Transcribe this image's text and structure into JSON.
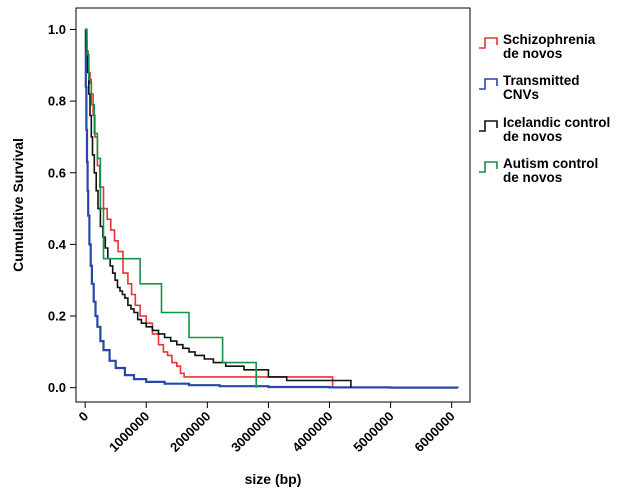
{
  "chart_data": {
    "type": "line",
    "step": true,
    "title": "",
    "xlabel": "size (bp)",
    "ylabel": "Cumulative Survival",
    "xlim": [
      -150000,
      6300000
    ],
    "ylim": [
      -0.04,
      1.06
    ],
    "x_ticks": [
      0,
      1000000,
      2000000,
      3000000,
      4000000,
      5000000,
      6000000
    ],
    "x_tick_labels": [
      "0",
      "1000000",
      "2000000",
      "3000000",
      "4000000",
      "5000000",
      "6000000"
    ],
    "y_ticks": [
      0,
      0.2,
      0.4,
      0.6,
      0.8,
      1.0
    ],
    "y_tick_labels": [
      "0.0",
      "0.2",
      "0.4",
      "0.6",
      "0.8",
      "1.0"
    ],
    "grid": false,
    "legend_position": "outside-right",
    "series": [
      {
        "name": "Schizophrenia de novos",
        "label_lines": [
          "Schizophrenia",
          "de novos"
        ],
        "color": "#e8333a",
        "x": [
          0,
          15000,
          30000,
          45000,
          60000,
          80000,
          100000,
          130000,
          160000,
          200000,
          240000,
          300000,
          360000,
          420000,
          480000,
          540000,
          620000,
          700000,
          760000,
          820000,
          900000,
          1000000,
          1100000,
          1200000,
          1280000,
          1350000,
          1420000,
          1500000,
          1560000,
          1620000,
          1680000,
          4050000
        ],
        "y": [
          1.0,
          0.97,
          0.94,
          0.91,
          0.88,
          0.85,
          0.82,
          0.76,
          0.7,
          0.62,
          0.56,
          0.5,
          0.47,
          0.44,
          0.41,
          0.38,
          0.32,
          0.29,
          0.26,
          0.23,
          0.2,
          0.18,
          0.15,
          0.12,
          0.1,
          0.09,
          0.07,
          0.06,
          0.04,
          0.03,
          0.03,
          0.0
        ]
      },
      {
        "name": "Transmitted CNVs",
        "label_lines": [
          "Transmitted",
          "CNVs"
        ],
        "color": "#2748a8",
        "x": [
          0,
          10000,
          20000,
          30000,
          40000,
          50000,
          70000,
          90000,
          110000,
          140000,
          170000,
          200000,
          250000,
          300000,
          400000,
          500000,
          650000,
          800000,
          1000000,
          1300000,
          1700000,
          2200000,
          3000000,
          4000000,
          5000000,
          6100000
        ],
        "y": [
          1.0,
          0.84,
          0.72,
          0.63,
          0.55,
          0.48,
          0.4,
          0.34,
          0.29,
          0.24,
          0.2,
          0.17,
          0.13,
          0.105,
          0.075,
          0.055,
          0.035,
          0.024,
          0.016,
          0.011,
          0.007,
          0.004,
          0.002,
          0.0008,
          0.0003,
          0.0
        ]
      },
      {
        "name": "Icelandic control de novos",
        "label_lines": [
          "Icelandic control",
          "de novos"
        ],
        "color": "#111111",
        "x": [
          0,
          20000,
          40000,
          60000,
          80000,
          100000,
          120000,
          150000,
          180000,
          210000,
          250000,
          290000,
          330000,
          370000,
          410000,
          450000,
          490000,
          530000,
          570000,
          610000,
          650000,
          700000,
          750000,
          800000,
          860000,
          920000,
          1000000,
          1100000,
          1200000,
          1300000,
          1400000,
          1500000,
          1600000,
          1700000,
          1800000,
          1950000,
          2100000,
          2300000,
          2600000,
          3000000,
          3300000,
          4350000
        ],
        "y": [
          1.0,
          0.94,
          0.88,
          0.82,
          0.76,
          0.7,
          0.65,
          0.6,
          0.55,
          0.5,
          0.45,
          0.42,
          0.39,
          0.36,
          0.34,
          0.32,
          0.3,
          0.28,
          0.27,
          0.26,
          0.25,
          0.23,
          0.22,
          0.21,
          0.19,
          0.18,
          0.17,
          0.16,
          0.15,
          0.14,
          0.13,
          0.12,
          0.11,
          0.1,
          0.09,
          0.08,
          0.07,
          0.06,
          0.05,
          0.03,
          0.02,
          0.0
        ]
      },
      {
        "name": "Autism control de novos",
        "label_lines": [
          "Autism control",
          "de novos"
        ],
        "color": "#139447",
        "x": [
          0,
          30000,
          60000,
          100000,
          150000,
          200000,
          250000,
          300000,
          900000,
          1250000,
          1700000,
          2250000,
          2800000
        ],
        "y": [
          1.0,
          0.93,
          0.86,
          0.79,
          0.71,
          0.64,
          0.5,
          0.36,
          0.29,
          0.21,
          0.14,
          0.07,
          0.0
        ]
      }
    ]
  }
}
